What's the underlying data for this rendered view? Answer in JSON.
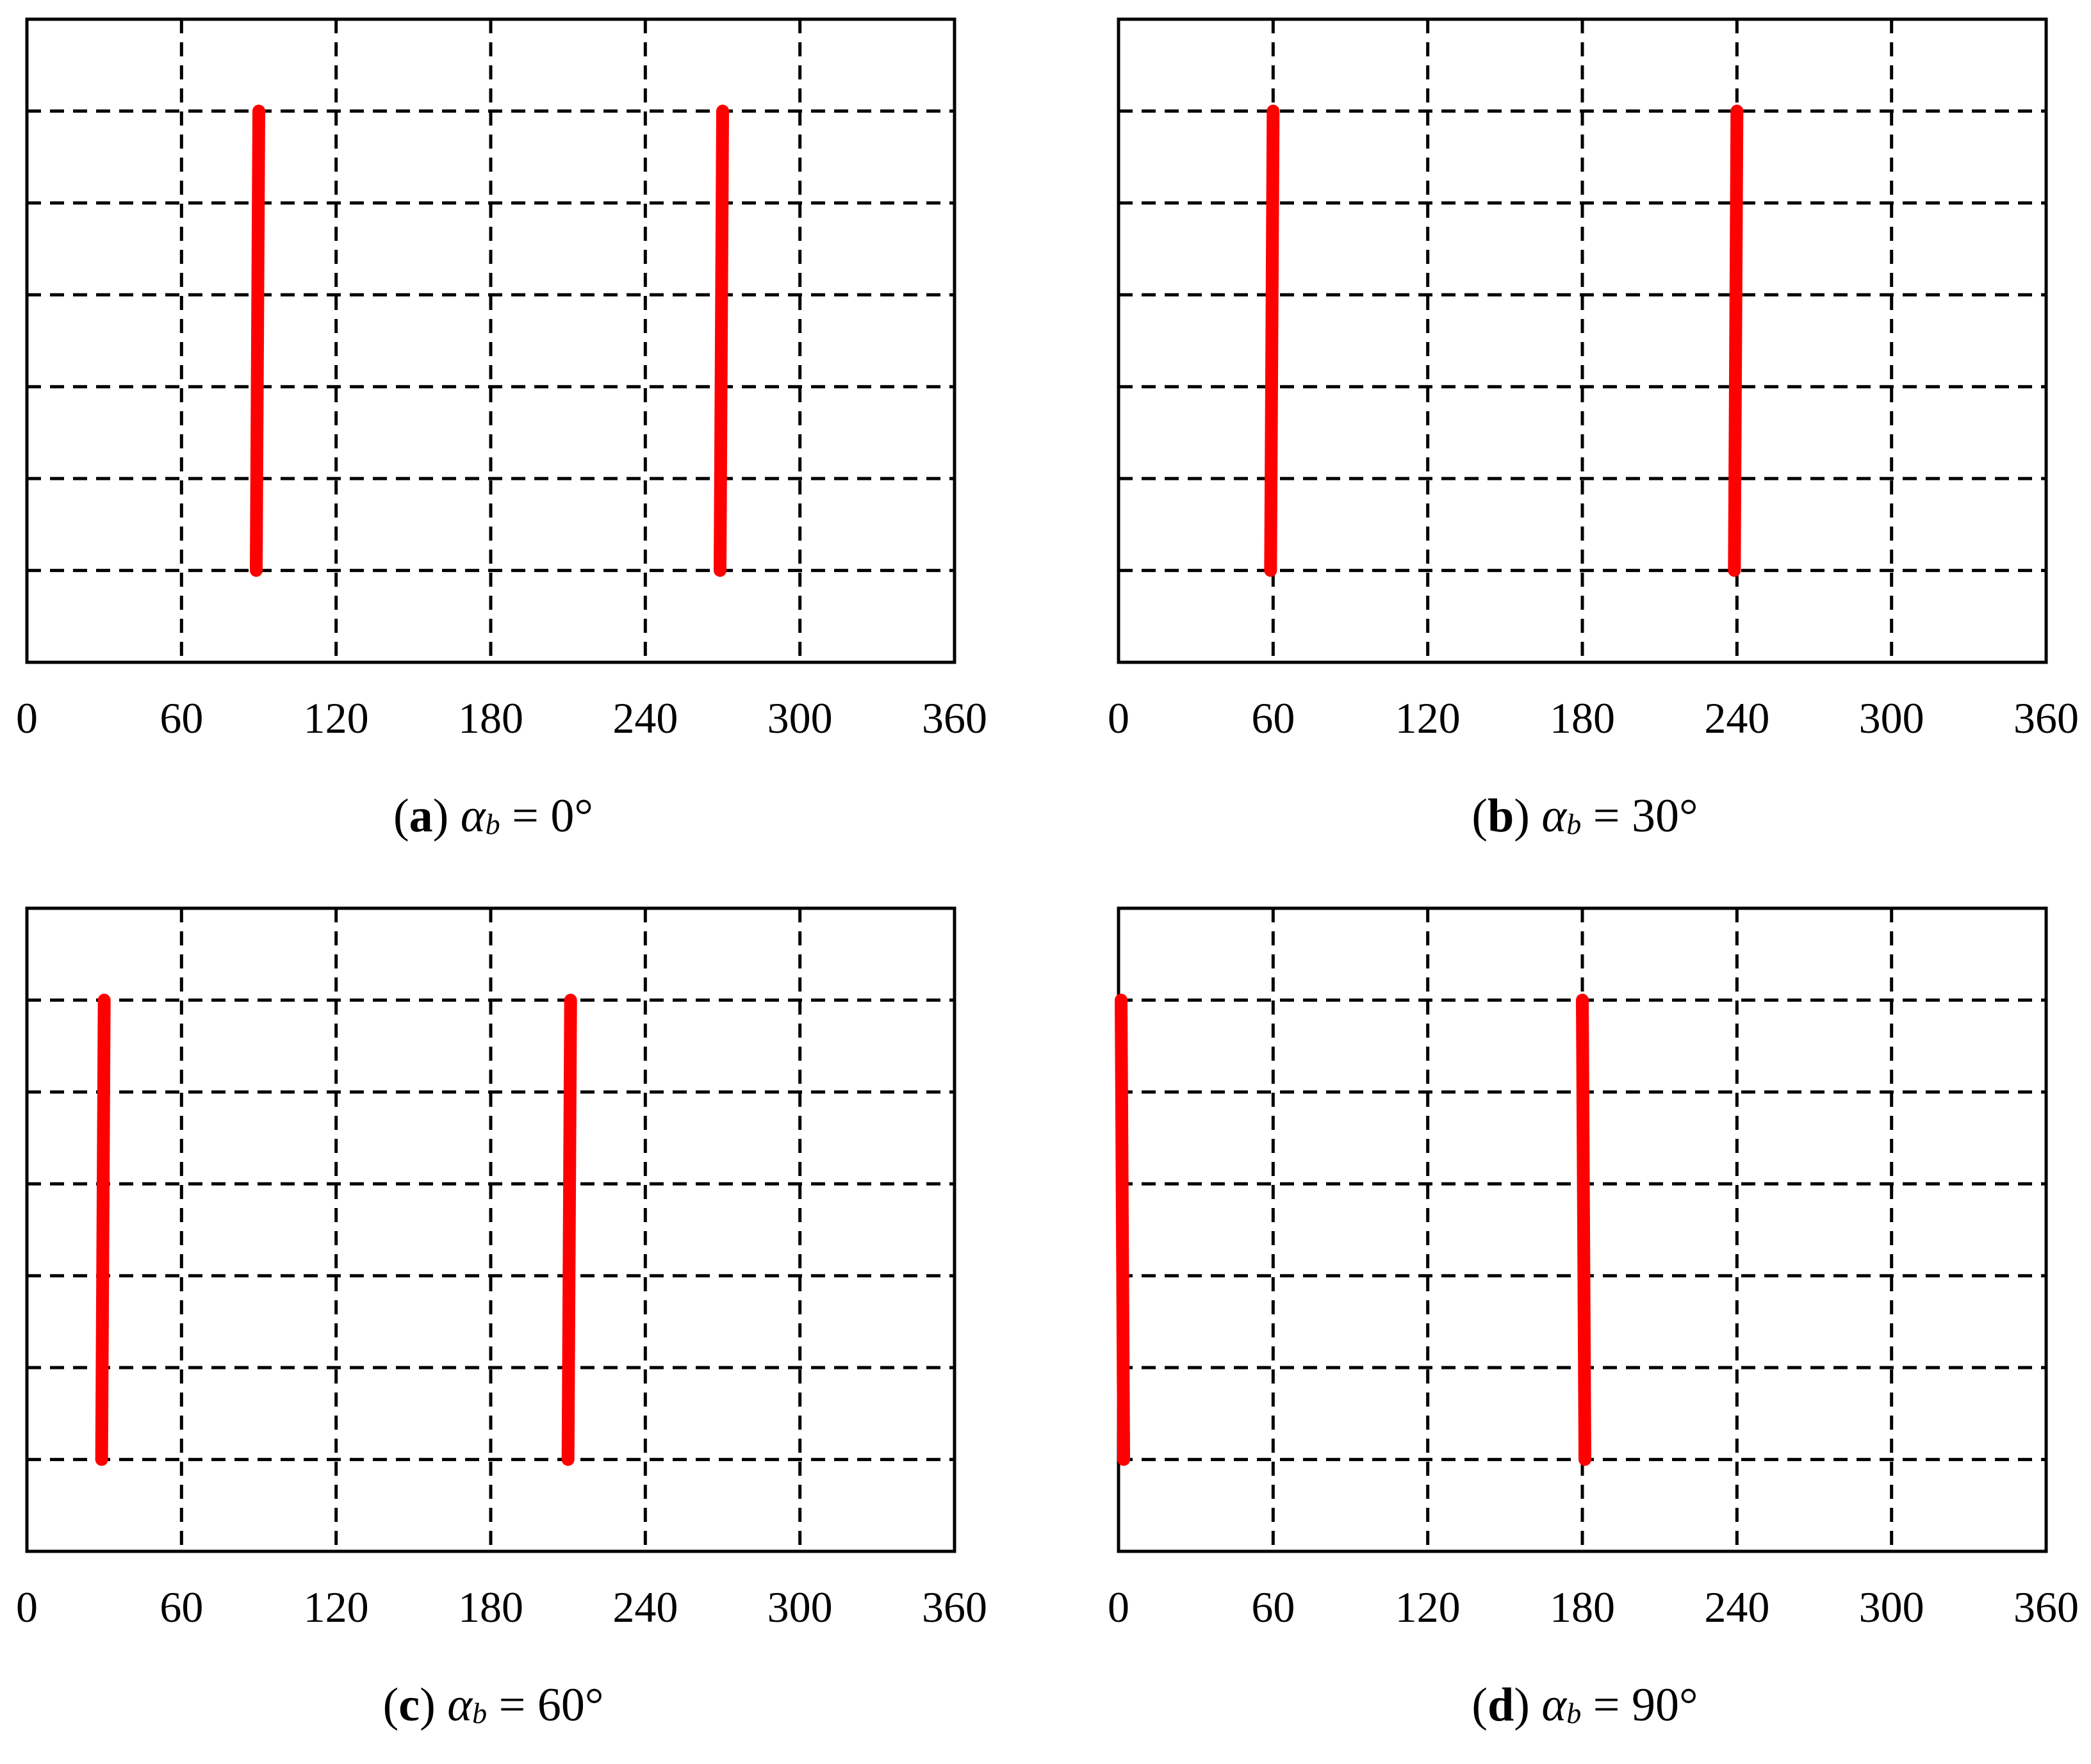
{
  "chart_data": [
    {
      "type": "line",
      "panel_letter": "a",
      "caption_symbol": "α",
      "caption_subscript": "b",
      "caption_value": "= 0°",
      "xlim": [
        0,
        360
      ],
      "xticks": [
        "0",
        "60",
        "120",
        "180",
        "240",
        "300",
        "360"
      ],
      "grid": true,
      "gridline_count_y": 6,
      "series": [
        {
          "x": [
            90,
            89
          ],
          "y": [
            6,
            1
          ]
        },
        {
          "x": [
            270,
            269
          ],
          "y": [
            6,
            1
          ]
        }
      ]
    },
    {
      "type": "line",
      "panel_letter": "b",
      "caption_symbol": "α",
      "caption_subscript": "b",
      "caption_value": "= 30°",
      "xlim": [
        0,
        360
      ],
      "xticks": [
        "0",
        "60",
        "120",
        "180",
        "240",
        "300",
        "360"
      ],
      "grid": true,
      "gridline_count_y": 6,
      "series": [
        {
          "x": [
            60,
            59
          ],
          "y": [
            6,
            1
          ]
        },
        {
          "x": [
            240,
            239
          ],
          "y": [
            6,
            1
          ]
        }
      ]
    },
    {
      "type": "line",
      "panel_letter": "c",
      "caption_symbol": "α",
      "caption_subscript": "b",
      "caption_value": "= 60°",
      "xlim": [
        0,
        360
      ],
      "xticks": [
        "0",
        "60",
        "120",
        "180",
        "240",
        "300",
        "360"
      ],
      "grid": true,
      "gridline_count_y": 6,
      "series": [
        {
          "x": [
            30,
            29
          ],
          "y": [
            6,
            1
          ]
        },
        {
          "x": [
            211,
            210
          ],
          "y": [
            6,
            1
          ]
        }
      ]
    },
    {
      "type": "line",
      "panel_letter": "d",
      "caption_symbol": "α",
      "caption_subscript": "b",
      "caption_value": "= 90°",
      "xlim": [
        0,
        360
      ],
      "xticks": [
        "0",
        "60",
        "120",
        "180",
        "240",
        "300",
        "360"
      ],
      "grid": true,
      "gridline_count_y": 6,
      "series": [
        {
          "x": [
            1,
            2
          ],
          "y": [
            6,
            1
          ]
        },
        {
          "x": [
            180,
            181
          ],
          "y": [
            6,
            1
          ]
        }
      ]
    }
  ],
  "colors": {
    "line": "#ff0000",
    "grid": "#000000",
    "frame": "#000000"
  }
}
